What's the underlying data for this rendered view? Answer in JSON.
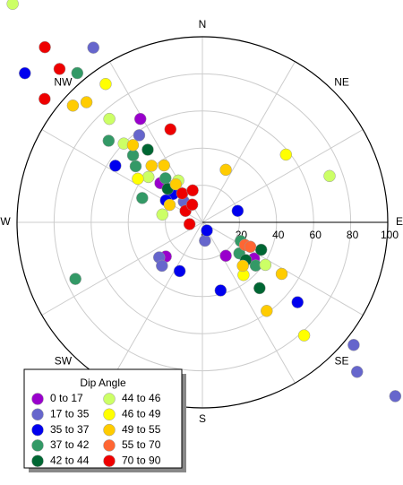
{
  "chart_data": {
    "type": "polar_scatter",
    "rlim": [
      0,
      100
    ],
    "rticks": [
      0,
      20,
      40,
      60,
      80,
      100
    ],
    "thetaticks": [
      {
        "value": 0,
        "label": "N"
      },
      {
        "value": 45,
        "label": "NE"
      },
      {
        "value": 90,
        "label": "E"
      },
      {
        "value": 135,
        "label": "SE"
      },
      {
        "value": 180,
        "label": "S"
      },
      {
        "value": 225,
        "label": "SW"
      },
      {
        "value": 270,
        "label": "W"
      },
      {
        "value": 315,
        "label": "NW"
      }
    ],
    "legend_title": "Dip Angle",
    "legend_position": "lower left",
    "series": [
      {
        "name": "0 to 17",
        "color": "#9900cc",
        "theta": [
          329,
          313,
          227,
          145,
          125
        ],
        "r": [
          65,
          31,
          27,
          22,
          34
        ]
      },
      {
        "name": "17 to 35",
        "color": "#6666cc",
        "theta": [
          328,
          324,
          318,
          172,
          231,
          223,
          129,
          134,
          132
        ],
        "r": [
          111,
          58,
          15,
          10,
          30,
          32,
          105,
          116,
          140
        ]
      },
      {
        "name": "35 to 37",
        "color": "#0000ee",
        "theta": [
          310,
          303,
          314,
          301,
          151,
          72,
          205,
          165,
          130
        ],
        "r": [
          125,
          56,
          22,
          23,
          5,
          20,
          29,
          38,
          67
        ]
      },
      {
        "name": "37 to 42",
        "color": "#339966",
        "theta": [
          320,
          311,
          314,
          310,
          320,
          292,
          246,
          116,
          130,
          129
        ],
        "r": [
          105,
          67,
          52,
          47,
          31,
          35,
          75,
          23,
          26,
          37
        ]
      },
      {
        "name": "42 to 44",
        "color": "#006633",
        "theta": [
          323,
          314,
          115,
          131,
          139
        ],
        "r": [
          49,
          26,
          35,
          31,
          47
        ]
      },
      {
        "name": "44 to 46",
        "color": "#ccff66",
        "theta": [
          319,
          318,
          315,
          310,
          330,
          281,
          70,
          124
        ],
        "r": [
          156,
          75,
          60,
          38,
          26,
          22,
          73,
          41
        ]
      },
      {
        "name": "46 to 49",
        "color": "#ffff00",
        "theta": [
          325,
          304,
          51,
          142,
          138
        ],
        "r": [
          91,
          42,
          58,
          36,
          82
        ]
      },
      {
        "name": "49 to 55",
        "color": "#ffcc00",
        "theta": [
          312,
          316,
          318,
          318,
          326,
          325,
          298,
          24,
          137,
          123,
          144
        ],
        "r": [
          94,
          90,
          56,
          41,
          37,
          25,
          20,
          31,
          32,
          51,
          59
        ]
      },
      {
        "name": "55 to 70",
        "color": "#ff6633",
        "theta": [
          118,
          117
        ],
        "r": [
          26,
          29
        ]
      },
      {
        "name": "70 to 90",
        "color": "#ee0000",
        "theta": [
          318,
          317,
          308,
          341,
          325,
          343,
          304,
          330,
          262
        ],
        "r": [
          127,
          113,
          108,
          53,
          19,
          18,
          11,
          11,
          7
        ]
      }
    ]
  }
}
